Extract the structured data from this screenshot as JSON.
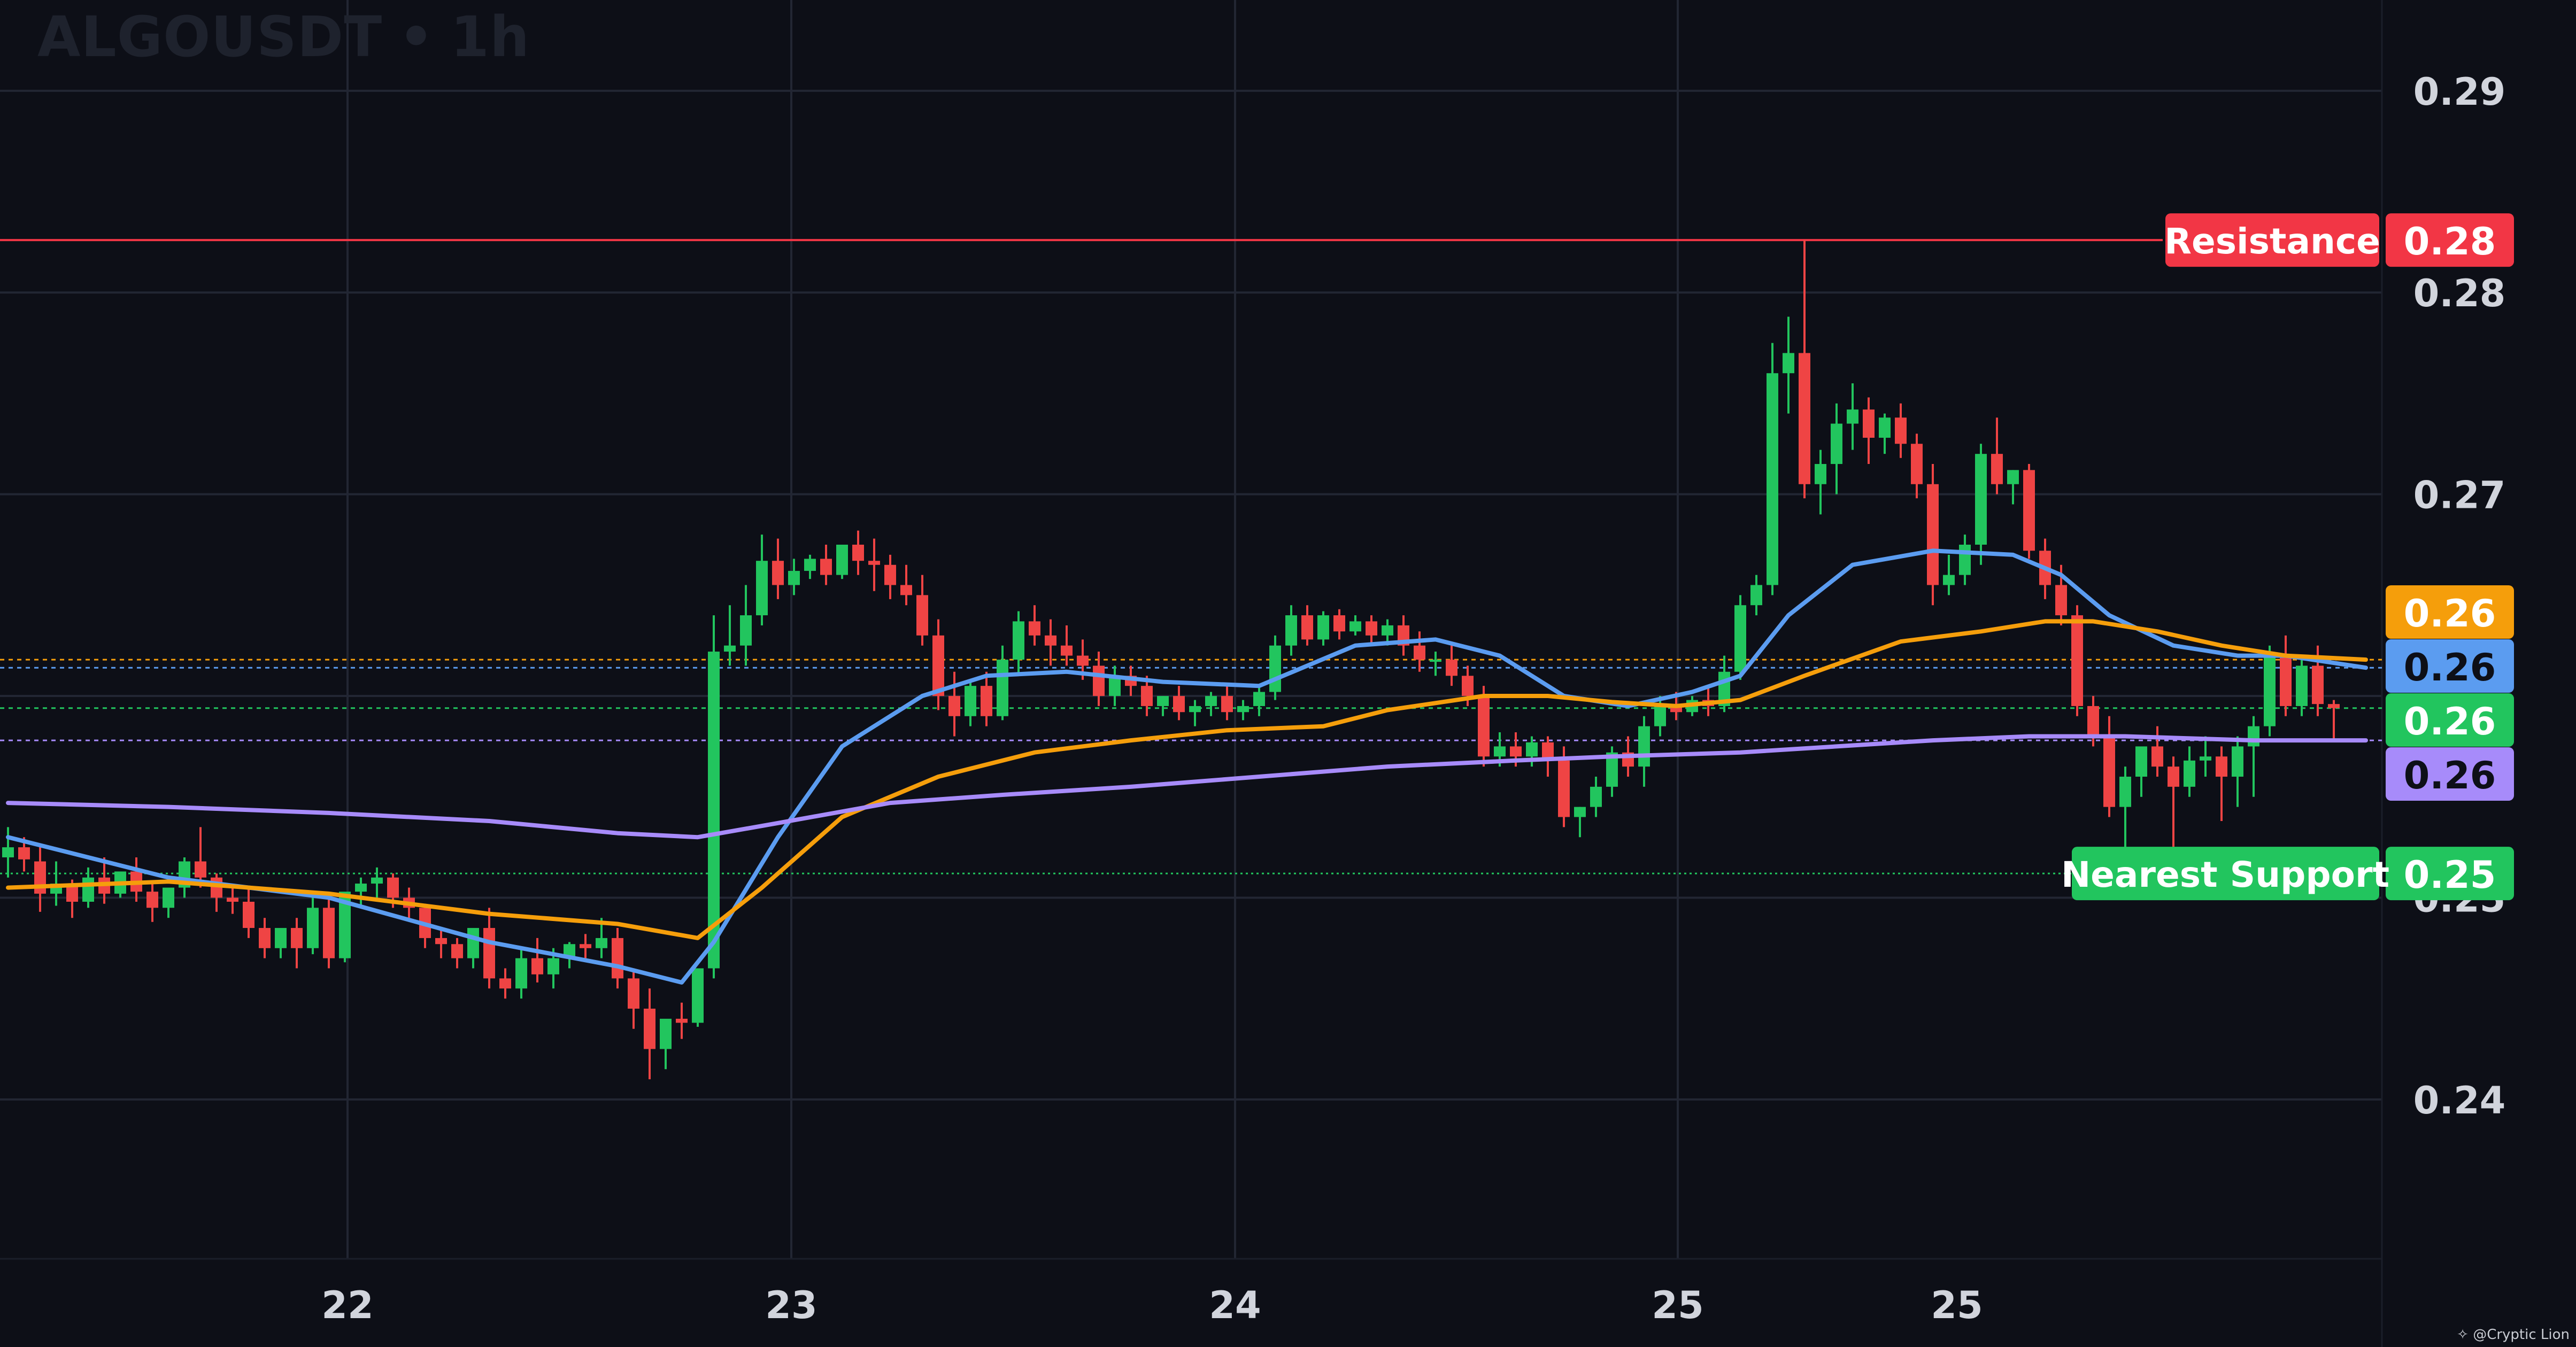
{
  "header": {
    "symbol": "ALGOUSDT",
    "separator": "•",
    "interval": "1h"
  },
  "credit": {
    "icon": "sparkle-icon",
    "text": "@Cryptic Lion"
  },
  "colors": {
    "background": "#0d0f17",
    "grid": "#222633",
    "axis_text": "#d1d4dc",
    "up": "#22c55e",
    "down": "#ef4444",
    "resistance": "#f23645",
    "support": "#22c55e",
    "ema_fast": "#5b9cf0",
    "ema_mid": "#f59e0b",
    "ema_slow": "#a78bfa"
  },
  "chart_data": {
    "type": "candlestick",
    "title": "ALGOUSDT • 1h",
    "x_ticks": [
      "22",
      "23",
      "24",
      "25",
      "25"
    ],
    "y_ticks": [
      "0.29",
      "0.28",
      "0.27",
      "0.25",
      "0.24"
    ],
    "ylim": [
      0.2321,
      0.2945
    ],
    "grid": true,
    "levels": [
      {
        "name": "Resistance",
        "label": "Resistance",
        "value_label": "0.28",
        "value": 0.2826
      },
      {
        "name": "Nearest Support",
        "label": "Nearest Support",
        "value_label": "0.25",
        "value": 0.2512
      }
    ],
    "price_tags": [
      {
        "value_label": "0.26",
        "value": 0.2618,
        "role": "ema_mid"
      },
      {
        "value_label": "0.26",
        "value": 0.2614,
        "role": "ema_fast"
      },
      {
        "value_label": "0.26",
        "value": 0.2594,
        "role": "last_price"
      },
      {
        "value_label": "0.26",
        "value": 0.2578,
        "role": "ema_slow"
      }
    ],
    "candles": [
      [
        0.252,
        0.2535,
        0.2525,
        0.251
      ],
      [
        0.2525,
        0.253,
        0.2519,
        0.2513
      ],
      [
        0.2518,
        0.2525,
        0.2502,
        0.2493
      ],
      [
        0.2502,
        0.2518,
        0.2507,
        0.2496
      ],
      [
        0.2507,
        0.2509,
        0.2498,
        0.249
      ],
      [
        0.2498,
        0.2515,
        0.251,
        0.2495
      ],
      [
        0.251,
        0.252,
        0.2502,
        0.2497
      ],
      [
        0.2502,
        0.251,
        0.2513,
        0.25
      ],
      [
        0.2513,
        0.252,
        0.2503,
        0.2498
      ],
      [
        0.2503,
        0.2508,
        0.2495,
        0.2488
      ],
      [
        0.2495,
        0.25,
        0.2505,
        0.249
      ],
      [
        0.2505,
        0.252,
        0.2518,
        0.25
      ],
      [
        0.2518,
        0.2535,
        0.251,
        0.2505
      ],
      [
        0.251,
        0.2512,
        0.25,
        0.2493
      ],
      [
        0.25,
        0.2505,
        0.2498,
        0.2492
      ],
      [
        0.2498,
        0.2505,
        0.2485,
        0.248
      ],
      [
        0.2485,
        0.249,
        0.2475,
        0.247
      ],
      [
        0.2475,
        0.2482,
        0.2485,
        0.247
      ],
      [
        0.2485,
        0.249,
        0.2475,
        0.2465
      ],
      [
        0.2475,
        0.25,
        0.2495,
        0.2472
      ],
      [
        0.2495,
        0.25,
        0.247,
        0.2465
      ],
      [
        0.247,
        0.249,
        0.2503,
        0.2468
      ],
      [
        0.2503,
        0.251,
        0.2507,
        0.2495
      ],
      [
        0.2507,
        0.2515,
        0.251,
        0.25
      ],
      [
        0.251,
        0.2512,
        0.25,
        0.2495
      ],
      [
        0.25,
        0.2505,
        0.2495,
        0.249
      ],
      [
        0.2495,
        0.2497,
        0.248,
        0.2475
      ],
      [
        0.248,
        0.2485,
        0.2477,
        0.247
      ],
      [
        0.2477,
        0.248,
        0.247,
        0.2465
      ],
      [
        0.247,
        0.2475,
        0.2485,
        0.2465
      ],
      [
        0.2485,
        0.2495,
        0.246,
        0.2455
      ],
      [
        0.246,
        0.2465,
        0.2455,
        0.245
      ],
      [
        0.2455,
        0.2475,
        0.247,
        0.245
      ],
      [
        0.247,
        0.248,
        0.2462,
        0.2458
      ],
      [
        0.2462,
        0.2475,
        0.247,
        0.2455
      ],
      [
        0.247,
        0.2478,
        0.2477,
        0.2465
      ],
      [
        0.2477,
        0.2482,
        0.2475,
        0.247
      ],
      [
        0.2475,
        0.249,
        0.248,
        0.247
      ],
      [
        0.248,
        0.2485,
        0.246,
        0.2455
      ],
      [
        0.246,
        0.2465,
        0.2445,
        0.2435
      ],
      [
        0.2445,
        0.2455,
        0.2425,
        0.241
      ],
      [
        0.2425,
        0.243,
        0.244,
        0.2415
      ],
      [
        0.244,
        0.2448,
        0.2438,
        0.243
      ],
      [
        0.2438,
        0.2442,
        0.2465,
        0.2436
      ],
      [
        0.2465,
        0.264,
        0.2622,
        0.246
      ],
      [
        0.2622,
        0.2645,
        0.2625,
        0.2615
      ],
      [
        0.2625,
        0.2655,
        0.264,
        0.2615
      ],
      [
        0.264,
        0.268,
        0.2667,
        0.2635
      ],
      [
        0.2667,
        0.2678,
        0.2655,
        0.2648
      ],
      [
        0.2655,
        0.2668,
        0.2662,
        0.265
      ],
      [
        0.2662,
        0.267,
        0.2668,
        0.2658
      ],
      [
        0.2668,
        0.2675,
        0.266,
        0.2655
      ],
      [
        0.266,
        0.2672,
        0.2675,
        0.2658
      ],
      [
        0.2675,
        0.2682,
        0.2667,
        0.266
      ],
      [
        0.2667,
        0.2678,
        0.2665,
        0.2652
      ],
      [
        0.2665,
        0.267,
        0.2655,
        0.2648
      ],
      [
        0.2655,
        0.2665,
        0.265,
        0.2645
      ],
      [
        0.265,
        0.266,
        0.263,
        0.2625
      ],
      [
        0.263,
        0.2638,
        0.26,
        0.2593
      ],
      [
        0.26,
        0.2612,
        0.259,
        0.258
      ],
      [
        0.259,
        0.2608,
        0.2605,
        0.2585
      ],
      [
        0.2605,
        0.2612,
        0.259,
        0.2585
      ],
      [
        0.259,
        0.2625,
        0.2618,
        0.2588
      ],
      [
        0.2618,
        0.2642,
        0.2637,
        0.261
      ],
      [
        0.2637,
        0.2645,
        0.263,
        0.2625
      ],
      [
        0.263,
        0.2638,
        0.2625,
        0.2615
      ],
      [
        0.2625,
        0.2635,
        0.262,
        0.2615
      ],
      [
        0.262,
        0.2628,
        0.2615,
        0.2608
      ],
      [
        0.2615,
        0.2622,
        0.26,
        0.2595
      ],
      [
        0.26,
        0.2615,
        0.261,
        0.2595
      ],
      [
        0.261,
        0.2615,
        0.2605,
        0.26
      ],
      [
        0.2605,
        0.261,
        0.2595,
        0.259
      ],
      [
        0.2595,
        0.26,
        0.26,
        0.259
      ],
      [
        0.26,
        0.2605,
        0.2592,
        0.2588
      ],
      [
        0.2592,
        0.2598,
        0.2595,
        0.2585
      ],
      [
        0.2595,
        0.2602,
        0.26,
        0.259
      ],
      [
        0.26,
        0.2605,
        0.2592,
        0.2588
      ],
      [
        0.2592,
        0.2598,
        0.2595,
        0.2588
      ],
      [
        0.2595,
        0.2605,
        0.2602,
        0.259
      ],
      [
        0.2602,
        0.263,
        0.2625,
        0.2598
      ],
      [
        0.2625,
        0.2645,
        0.264,
        0.262
      ],
      [
        0.264,
        0.2645,
        0.2628,
        0.2625
      ],
      [
        0.2628,
        0.2642,
        0.264,
        0.2625
      ],
      [
        0.264,
        0.2643,
        0.2632,
        0.2628
      ],
      [
        0.2632,
        0.264,
        0.2637,
        0.263
      ],
      [
        0.2637,
        0.264,
        0.263,
        0.2625
      ],
      [
        0.263,
        0.2638,
        0.2635,
        0.2625
      ],
      [
        0.2635,
        0.264,
        0.2625,
        0.262
      ],
      [
        0.2625,
        0.2632,
        0.2618,
        0.2612
      ],
      [
        0.2618,
        0.2622,
        0.2618,
        0.261
      ],
      [
        0.2618,
        0.2625,
        0.261,
        0.2605
      ],
      [
        0.261,
        0.2615,
        0.26,
        0.2595
      ],
      [
        0.26,
        0.2605,
        0.257,
        0.2565
      ],
      [
        0.257,
        0.2582,
        0.2575,
        0.2565
      ],
      [
        0.2575,
        0.2582,
        0.257,
        0.2565
      ],
      [
        0.257,
        0.258,
        0.2577,
        0.2565
      ],
      [
        0.2577,
        0.258,
        0.2568,
        0.256
      ],
      [
        0.2568,
        0.2575,
        0.254,
        0.2535
      ],
      [
        0.254,
        0.2545,
        0.2545,
        0.253
      ],
      [
        0.2545,
        0.256,
        0.2555,
        0.254
      ],
      [
        0.2555,
        0.2575,
        0.2572,
        0.255
      ],
      [
        0.2572,
        0.258,
        0.2565,
        0.256
      ],
      [
        0.2565,
        0.259,
        0.2585,
        0.2555
      ],
      [
        0.2585,
        0.26,
        0.2595,
        0.258
      ],
      [
        0.2595,
        0.2602,
        0.2592,
        0.2588
      ],
      [
        0.2592,
        0.26,
        0.2598,
        0.259
      ],
      [
        0.2598,
        0.2605,
        0.2595,
        0.259
      ],
      [
        0.2595,
        0.262,
        0.2612,
        0.2592
      ],
      [
        0.2612,
        0.265,
        0.2645,
        0.2608
      ],
      [
        0.2645,
        0.266,
        0.2655,
        0.264
      ],
      [
        0.2655,
        0.2775,
        0.276,
        0.265
      ],
      [
        0.276,
        0.2788,
        0.277,
        0.274
      ],
      [
        0.277,
        0.2826,
        0.2705,
        0.2698
      ],
      [
        0.2705,
        0.2722,
        0.2715,
        0.269
      ],
      [
        0.2715,
        0.2745,
        0.2735,
        0.27
      ],
      [
        0.2735,
        0.2755,
        0.2742,
        0.2722
      ],
      [
        0.2742,
        0.2748,
        0.2728,
        0.2715
      ],
      [
        0.2728,
        0.274,
        0.2738,
        0.272
      ],
      [
        0.2738,
        0.2745,
        0.2725,
        0.2718
      ],
      [
        0.2725,
        0.273,
        0.2705,
        0.2698
      ],
      [
        0.2705,
        0.2715,
        0.2655,
        0.2645
      ],
      [
        0.2655,
        0.267,
        0.266,
        0.265
      ],
      [
        0.266,
        0.268,
        0.2675,
        0.2655
      ],
      [
        0.2675,
        0.2725,
        0.272,
        0.2665
      ],
      [
        0.272,
        0.2738,
        0.2705,
        0.27
      ],
      [
        0.2705,
        0.2712,
        0.2712,
        0.2695
      ],
      [
        0.2712,
        0.2715,
        0.2672,
        0.2668
      ],
      [
        0.2672,
        0.2678,
        0.2655,
        0.2648
      ],
      [
        0.2655,
        0.2665,
        0.264,
        0.2635
      ],
      [
        0.264,
        0.2645,
        0.2595,
        0.259
      ],
      [
        0.2595,
        0.26,
        0.258,
        0.2575
      ],
      [
        0.258,
        0.259,
        0.2545,
        0.254
      ],
      [
        0.2545,
        0.2565,
        0.256,
        0.2512
      ],
      [
        0.256,
        0.257,
        0.2575,
        0.255
      ],
      [
        0.2575,
        0.2585,
        0.2565,
        0.256
      ],
      [
        0.2565,
        0.257,
        0.2555,
        0.252
      ],
      [
        0.2555,
        0.2575,
        0.2568,
        0.255
      ],
      [
        0.2568,
        0.258,
        0.257,
        0.256
      ],
      [
        0.257,
        0.2575,
        0.256,
        0.2538
      ],
      [
        0.256,
        0.258,
        0.2575,
        0.2545
      ],
      [
        0.2575,
        0.259,
        0.2585,
        0.255
      ],
      [
        0.2585,
        0.2625,
        0.262,
        0.258
      ],
      [
        0.262,
        0.263,
        0.2595,
        0.259
      ],
      [
        0.2595,
        0.262,
        0.2615,
        0.259
      ],
      [
        0.2615,
        0.2625,
        0.2596,
        0.259
      ],
      [
        0.2596,
        0.2598,
        0.2594,
        0.2578
      ]
    ],
    "series": [
      {
        "role": "ema_fast",
        "color": "#5b9cf0",
        "points": [
          [
            0,
            0.253
          ],
          [
            10,
            0.251
          ],
          [
            20,
            0.25
          ],
          [
            30,
            0.2478
          ],
          [
            38,
            0.2466
          ],
          [
            42,
            0.2458
          ],
          [
            44,
            0.2478
          ],
          [
            48,
            0.253
          ],
          [
            52,
            0.2575
          ],
          [
            57,
            0.26
          ],
          [
            61,
            0.261
          ],
          [
            66,
            0.2612
          ],
          [
            72,
            0.2607
          ],
          [
            78,
            0.2605
          ],
          [
            84,
            0.2625
          ],
          [
            89,
            0.2628
          ],
          [
            93,
            0.262
          ],
          [
            97,
            0.26
          ],
          [
            101,
            0.2595
          ],
          [
            105,
            0.2602
          ],
          [
            108,
            0.261
          ],
          [
            111,
            0.264
          ],
          [
            115,
            0.2665
          ],
          [
            120,
            0.2672
          ],
          [
            125,
            0.267
          ],
          [
            128,
            0.266
          ],
          [
            131,
            0.264
          ],
          [
            135,
            0.2625
          ],
          [
            139,
            0.262
          ],
          [
            142,
            0.262
          ],
          [
            147,
            0.2614
          ]
        ]
      },
      {
        "role": "ema_mid",
        "color": "#f59e0b",
        "points": [
          [
            0,
            0.2505
          ],
          [
            10,
            0.2508
          ],
          [
            20,
            0.2502
          ],
          [
            30,
            0.2492
          ],
          [
            38,
            0.2487
          ],
          [
            43,
            0.248
          ],
          [
            47,
            0.2505
          ],
          [
            52,
            0.254
          ],
          [
            58,
            0.256
          ],
          [
            64,
            0.2572
          ],
          [
            70,
            0.2578
          ],
          [
            76,
            0.2583
          ],
          [
            82,
            0.2585
          ],
          [
            86,
            0.2593
          ],
          [
            92,
            0.26
          ],
          [
            96,
            0.26
          ],
          [
            100,
            0.2597
          ],
          [
            104,
            0.2595
          ],
          [
            108,
            0.2598
          ],
          [
            112,
            0.261
          ],
          [
            118,
            0.2627
          ],
          [
            123,
            0.2632
          ],
          [
            127,
            0.2637
          ],
          [
            130,
            0.2637
          ],
          [
            134,
            0.2632
          ],
          [
            138,
            0.2625
          ],
          [
            142,
            0.262
          ],
          [
            147,
            0.2618
          ]
        ]
      },
      {
        "role": "ema_slow",
        "color": "#a78bfa",
        "points": [
          [
            0,
            0.2547
          ],
          [
            10,
            0.2545
          ],
          [
            20,
            0.2542
          ],
          [
            30,
            0.2538
          ],
          [
            38,
            0.2532
          ],
          [
            43,
            0.253
          ],
          [
            48,
            0.2537
          ],
          [
            55,
            0.2547
          ],
          [
            62,
            0.2551
          ],
          [
            70,
            0.2555
          ],
          [
            78,
            0.256
          ],
          [
            86,
            0.2565
          ],
          [
            94,
            0.2568
          ],
          [
            100,
            0.257
          ],
          [
            108,
            0.2572
          ],
          [
            114,
            0.2575
          ],
          [
            120,
            0.2578
          ],
          [
            126,
            0.258
          ],
          [
            132,
            0.258
          ],
          [
            140,
            0.2578
          ],
          [
            147,
            0.2578
          ]
        ]
      }
    ]
  }
}
